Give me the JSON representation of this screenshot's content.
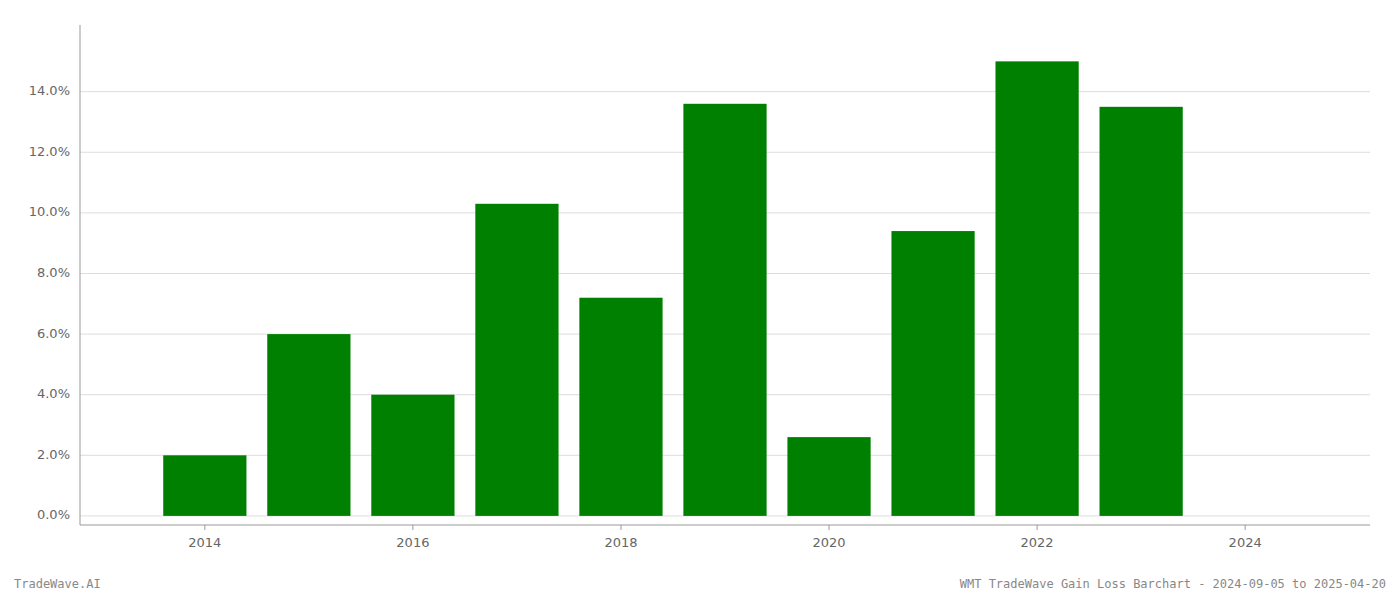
{
  "chart_data": {
    "type": "bar",
    "x": [
      2014,
      2015,
      2016,
      2017,
      2018,
      2019,
      2020,
      2021,
      2022,
      2023
    ],
    "values": [
      0.02,
      0.06,
      0.04,
      0.103,
      0.072,
      0.136,
      0.026,
      0.094,
      0.15,
      0.135
    ],
    "color": "#008000",
    "xlim": [
      2012.8,
      2025.2
    ],
    "xticks": [
      2014,
      2016,
      2018,
      2020,
      2022,
      2024
    ],
    "ylim": [
      -0.003,
      0.162
    ],
    "yticks": [
      {
        "value": 0.0,
        "label": "0.0%"
      },
      {
        "value": 0.02,
        "label": "2.0%"
      },
      {
        "value": 0.04,
        "label": "4.0%"
      },
      {
        "value": 0.06,
        "label": "6.0%"
      },
      {
        "value": 0.08,
        "label": "8.0%"
      },
      {
        "value": 0.1,
        "label": "10.0%"
      },
      {
        "value": 0.12,
        "label": "12.0%"
      },
      {
        "value": 0.14,
        "label": "14.0%"
      }
    ],
    "grid": true,
    "annotations": [
      "TradeWave.AI",
      "WMT TradeWave Gain Loss Barchart - 2024-09-05 to 2025-04-20"
    ]
  }
}
